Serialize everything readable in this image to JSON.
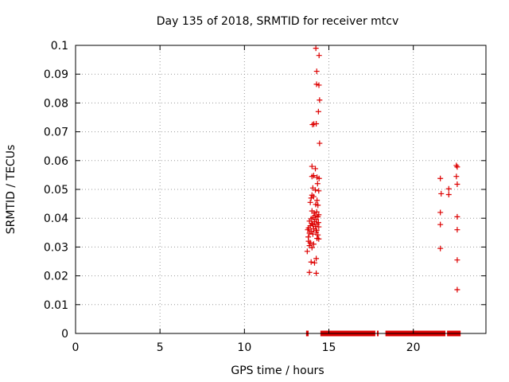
{
  "chart_data": {
    "type": "scatter",
    "title": "Day 135 of 2018, SRMTID for receiver mtcv",
    "xlabel": "GPS time / hours",
    "ylabel": "SRMTID / TECUs",
    "xlim": [
      0,
      24.3
    ],
    "ylim": [
      0,
      0.1
    ],
    "xticks": [
      0,
      5,
      10,
      15,
      20
    ],
    "xtick_labels": [
      "0",
      "5",
      "10",
      "15",
      "20"
    ],
    "yticks": [
      0,
      0.01,
      0.02,
      0.03,
      0.04,
      0.05,
      0.06,
      0.07,
      0.08,
      0.09,
      0.1
    ],
    "ytick_labels": [
      "0",
      "0.01",
      "0.02",
      "0.03",
      "0.04",
      "0.05",
      "0.06",
      "0.07",
      "0.08",
      "0.09",
      "0.1"
    ],
    "grid": true,
    "marker": "plus",
    "color": "#dd0000",
    "series": [
      {
        "points": [
          [
            14.23,
            0.099
          ],
          [
            14.42,
            0.0965
          ],
          [
            14.28,
            0.091
          ],
          [
            14.27,
            0.0865
          ],
          [
            14.41,
            0.0862
          ],
          [
            14.45,
            0.081
          ],
          [
            14.38,
            0.077
          ],
          [
            14.03,
            0.0725
          ],
          [
            14.11,
            0.0727
          ],
          [
            14.25,
            0.0728
          ],
          [
            14.45,
            0.066
          ],
          [
            14.0,
            0.058
          ],
          [
            14.2,
            0.0572
          ],
          [
            14.1,
            0.0548
          ],
          [
            14.0,
            0.0545
          ],
          [
            14.3,
            0.0542
          ],
          [
            14.42,
            0.0538
          ],
          [
            14.33,
            0.052
          ],
          [
            14.05,
            0.0505
          ],
          [
            14.2,
            0.0498
          ],
          [
            14.4,
            0.0495
          ],
          [
            14.0,
            0.048
          ],
          [
            14.1,
            0.0475
          ],
          [
            13.95,
            0.047
          ],
          [
            14.3,
            0.0462
          ],
          [
            13.9,
            0.0455
          ],
          [
            14.22,
            0.0448
          ],
          [
            14.35,
            0.0445
          ],
          [
            14.0,
            0.0425
          ],
          [
            14.28,
            0.0422
          ],
          [
            14.12,
            0.0418
          ],
          [
            14.4,
            0.0412
          ],
          [
            14.18,
            0.0408
          ],
          [
            14.35,
            0.0405
          ],
          [
            14.05,
            0.0402
          ],
          [
            13.95,
            0.0398
          ],
          [
            14.25,
            0.0395
          ],
          [
            13.85,
            0.039
          ],
          [
            14.15,
            0.0388
          ],
          [
            14.38,
            0.0385
          ],
          [
            13.98,
            0.0382
          ],
          [
            14.3,
            0.038
          ],
          [
            14.05,
            0.0377
          ],
          [
            13.9,
            0.0374
          ],
          [
            14.2,
            0.0372
          ],
          [
            14.4,
            0.037
          ],
          [
            13.8,
            0.0366
          ],
          [
            14.1,
            0.0363
          ],
          [
            13.75,
            0.036
          ],
          [
            14.28,
            0.0358
          ],
          [
            13.95,
            0.0355
          ],
          [
            14.25,
            0.0352
          ],
          [
            13.85,
            0.0348
          ],
          [
            14.05,
            0.0345
          ],
          [
            14.35,
            0.0342
          ],
          [
            13.78,
            0.0335
          ],
          [
            14.3,
            0.033
          ],
          [
            14.4,
            0.0328
          ],
          [
            13.8,
            0.032
          ],
          [
            13.9,
            0.0315
          ],
          [
            14.1,
            0.031
          ],
          [
            13.85,
            0.0305
          ],
          [
            14.0,
            0.0298
          ],
          [
            13.72,
            0.0285
          ],
          [
            14.25,
            0.026
          ],
          [
            13.95,
            0.0248
          ],
          [
            14.15,
            0.0245
          ],
          [
            13.85,
            0.0212
          ],
          [
            14.25,
            0.0209
          ],
          [
            21.6,
            0.0538
          ],
          [
            22.1,
            0.0502
          ],
          [
            21.65,
            0.0485
          ],
          [
            22.1,
            0.0482
          ],
          [
            21.6,
            0.042
          ],
          [
            21.6,
            0.0378
          ],
          [
            21.6,
            0.0295
          ],
          [
            22.55,
            0.0583
          ],
          [
            22.6,
            0.0578
          ],
          [
            22.55,
            0.0545
          ],
          [
            22.6,
            0.0518
          ],
          [
            22.6,
            0.0405
          ],
          [
            22.6,
            0.036
          ],
          [
            22.6,
            0.0255
          ],
          [
            22.6,
            0.0152
          ]
        ],
        "baseline_ranges": [
          [
            13.65,
            13.8
          ],
          [
            14.5,
            17.75
          ],
          [
            17.85,
            17.9
          ],
          [
            18.35,
            21.9
          ],
          [
            22.0,
            22.8
          ]
        ]
      }
    ]
  }
}
